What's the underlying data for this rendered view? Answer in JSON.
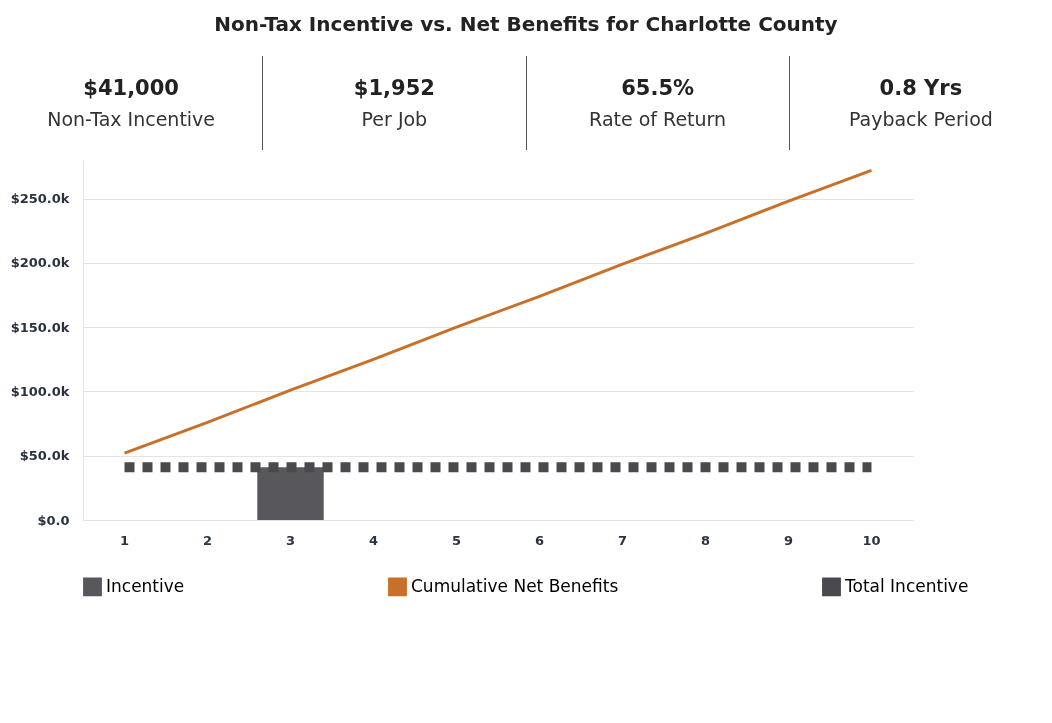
{
  "chart_data": [
    {
      "type": "other",
      "title": "Non-Tax Incentive vs. Net Benefits for Charlotte County",
      "annotations": [
        "$41,000",
        "Non-Tax Incentive",
        "$1,952",
        "Per Job",
        "65.5%",
        "Rate of Return",
        "0.8 Yrs",
        "Payback Period"
      ]
    },
    {
      "type": "bar",
      "categories": [
        "1",
        "2",
        "3",
        "4",
        "5",
        "6",
        "7",
        "8",
        "9",
        "10"
      ],
      "series": [
        {
          "name": "Incentive",
          "type": "bar",
          "color": "#58575c",
          "values": [
            null,
            null,
            41000,
            null,
            null,
            null,
            null,
            null,
            null,
            null
          ]
        },
        {
          "name": "Cumulative Net Benefits",
          "type": "line",
          "color": "#c8702a",
          "line_style": "solid",
          "values": [
            52000,
            76000,
            101000,
            125000,
            150000,
            174000,
            199000,
            223000,
            248000,
            272000
          ]
        },
        {
          "name": "Total Incentive",
          "type": "line",
          "color": "#4a4a4e",
          "line_style": "dashed",
          "values": [
            41000,
            41000,
            41000,
            41000,
            41000,
            41000,
            41000,
            41000,
            41000,
            41000
          ]
        }
      ],
      "ylim": [
        0,
        280000
      ],
      "yticks": [
        {
          "value": 0,
          "label": "$0.0"
        },
        {
          "value": 50000,
          "label": "$50.0k"
        },
        {
          "value": 100000,
          "label": "$100.0k"
        },
        {
          "value": 150000,
          "label": "$150.0k"
        },
        {
          "value": 200000,
          "label": "$200.0k"
        },
        {
          "value": 250000,
          "label": "$250.0k"
        }
      ],
      "grid": "y",
      "legend": "bottom"
    }
  ]
}
